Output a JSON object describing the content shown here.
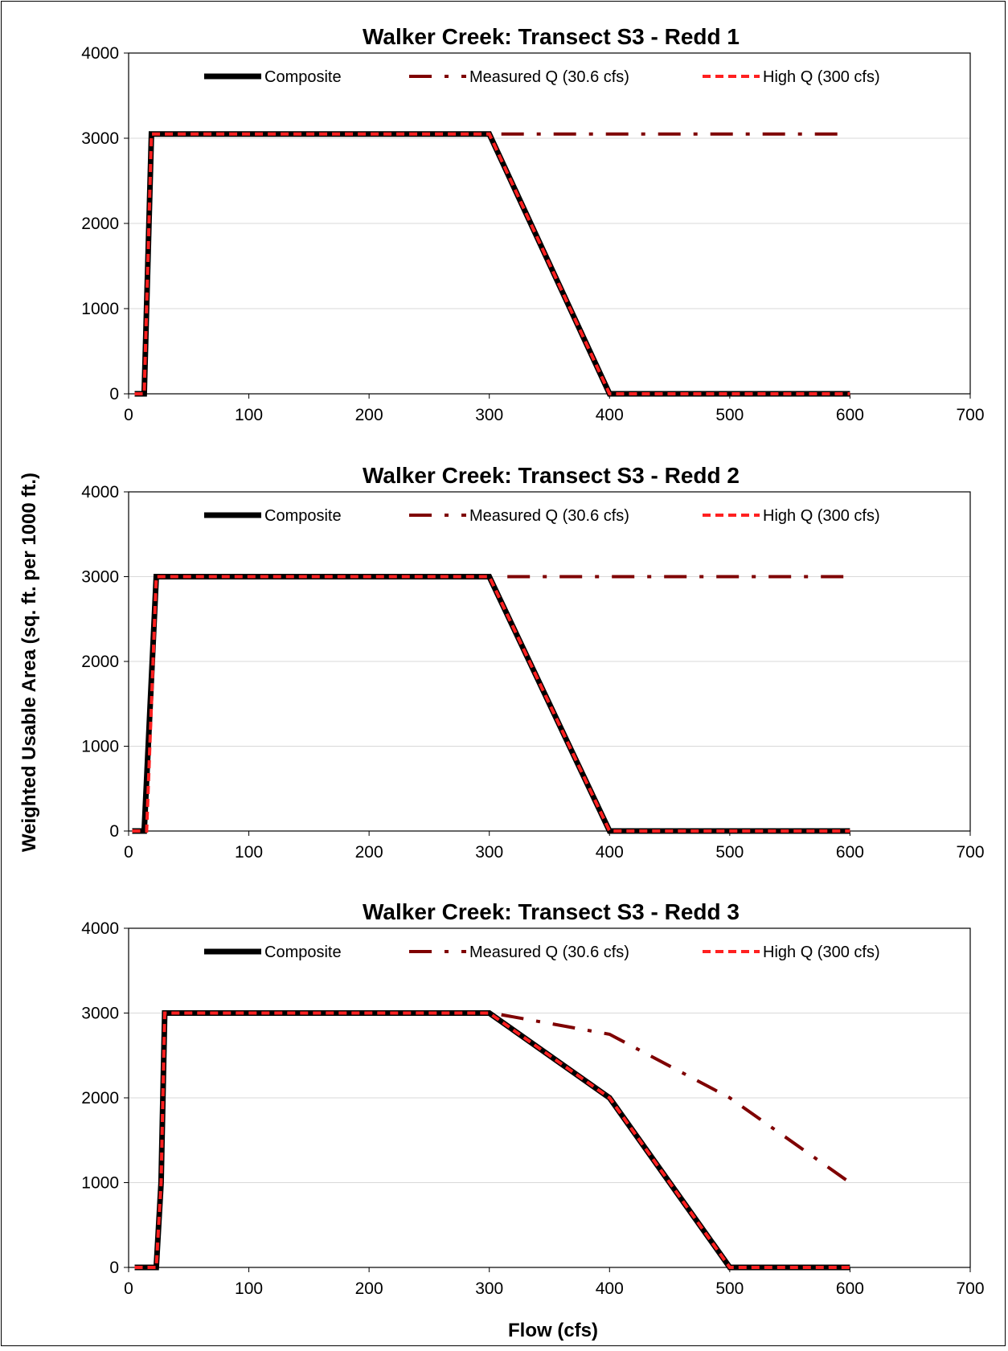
{
  "figure": {
    "ylabel": "Weighted Usable Area (sq. ft. per 1000 ft.)",
    "xlabel": "Flow (cfs)"
  },
  "colors": {
    "composite": "#000000",
    "measured": "#7f0000",
    "high": "#ff2020",
    "grid": "#d9d9d9",
    "axis": "#000000"
  },
  "chart_data": [
    {
      "type": "line",
      "title": "Walker Creek: Transect S3 - Redd 1",
      "xlim": [
        0,
        700
      ],
      "ylim": [
        0,
        4000
      ],
      "xticks": [
        0,
        100,
        200,
        300,
        400,
        500,
        600,
        700
      ],
      "yticks": [
        0,
        1000,
        2000,
        3000,
        4000
      ],
      "grid": "horizontal",
      "legend": "top",
      "series": [
        {
          "name": "Composite",
          "style": "solid-thick",
          "x": [
            5,
            13,
            19,
            300,
            400,
            600
          ],
          "y": [
            0,
            0,
            3050,
            3050,
            0,
            0
          ]
        },
        {
          "name": "Measured Q (30.6 cfs)",
          "style": "dash-dot",
          "x": [
            310,
            600
          ],
          "y": [
            3050,
            3050
          ]
        },
        {
          "name": "High Q (300 cfs)",
          "style": "dashed",
          "x": [
            5,
            13,
            19,
            300,
            400,
            600
          ],
          "y": [
            0,
            0,
            3050,
            3050,
            0,
            0
          ]
        }
      ]
    },
    {
      "type": "line",
      "title": "Walker Creek: Transect S3 - Redd 2",
      "xlim": [
        0,
        700
      ],
      "ylim": [
        0,
        4000
      ],
      "xticks": [
        0,
        100,
        200,
        300,
        400,
        500,
        600,
        700
      ],
      "yticks": [
        0,
        1000,
        2000,
        3000,
        4000
      ],
      "grid": "horizontal",
      "legend": "top",
      "series": [
        {
          "name": "Composite",
          "style": "solid-thick",
          "x": [
            3,
            13,
            23,
            300,
            400,
            600
          ],
          "y": [
            0,
            0,
            3000,
            3000,
            0,
            0
          ]
        },
        {
          "name": "Measured Q (30.6 cfs)",
          "style": "dash-dot",
          "x": [
            315,
            600
          ],
          "y": [
            3000,
            3000
          ]
        },
        {
          "name": "High Q (300 cfs)",
          "style": "dashed",
          "x": [
            3,
            15,
            23,
            300,
            400,
            600
          ],
          "y": [
            0,
            0,
            3000,
            3000,
            0,
            0
          ]
        }
      ]
    },
    {
      "type": "line",
      "title": "Walker Creek: Transect S3 - Redd 3",
      "xlim": [
        0,
        700
      ],
      "ylim": [
        0,
        4000
      ],
      "xticks": [
        0,
        100,
        200,
        300,
        400,
        500,
        600,
        700
      ],
      "yticks": [
        0,
        1000,
        2000,
        3000,
        4000
      ],
      "grid": "horizontal",
      "legend": "top",
      "series": [
        {
          "name": "Composite",
          "style": "solid-thick",
          "x": [
            5,
            23,
            27,
            30,
            300,
            400,
            500,
            600
          ],
          "y": [
            0,
            0,
            1000,
            3000,
            3000,
            2000,
            0,
            0
          ]
        },
        {
          "name": "Measured Q (30.6 cfs)",
          "style": "dash-dot",
          "x": [
            310,
            400,
            500,
            600
          ],
          "y": [
            2980,
            2750,
            2000,
            1000
          ]
        },
        {
          "name": "High Q (300 cfs)",
          "style": "dashed",
          "x": [
            5,
            23,
            27,
            30,
            300,
            400,
            500,
            600
          ],
          "y": [
            0,
            0,
            1000,
            3000,
            3000,
            2000,
            0,
            0
          ]
        }
      ]
    }
  ]
}
